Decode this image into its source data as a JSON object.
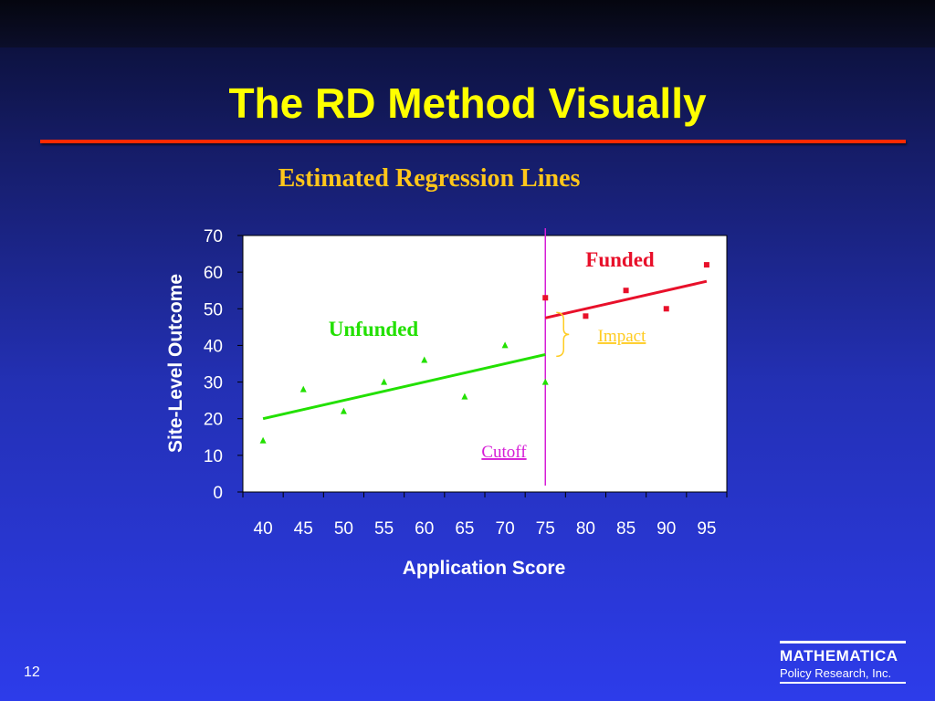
{
  "slide": {
    "title": "The RD Method Visually",
    "subtitle": "Estimated Regression Lines",
    "number": "12",
    "logo": {
      "main": "MATHEMATICA",
      "sub": "Policy Research, Inc."
    }
  },
  "colors": {
    "title": "#ffff00",
    "subtitle": "#ffc61a",
    "rule": "#ff2a00",
    "unfunded": "#22e000",
    "funded": "#e8102a",
    "cutoff": "#d61cd6",
    "impact": "#ffcc22",
    "plot_bg": "#ffffff"
  },
  "chart_data": {
    "type": "scatter",
    "xlabel": "Application Score",
    "ylabel": "Site-Level Outcome",
    "xlim": [
      37.5,
      97.5
    ],
    "ylim": [
      0,
      70
    ],
    "x_ticks": [
      40,
      45,
      50,
      55,
      60,
      65,
      70,
      75,
      80,
      85,
      90,
      95
    ],
    "y_ticks": [
      0,
      10,
      20,
      30,
      40,
      50,
      60,
      70
    ],
    "grid": false,
    "cutoff": 75,
    "series": [
      {
        "name": "Unfunded",
        "marker": "triangle",
        "points": [
          [
            40,
            14
          ],
          [
            45,
            28
          ],
          [
            50,
            22
          ],
          [
            55,
            30
          ],
          [
            60,
            36
          ],
          [
            65,
            26
          ],
          [
            70,
            40
          ],
          [
            75,
            30
          ]
        ],
        "fit": [
          [
            40,
            20
          ],
          [
            75,
            37.5
          ]
        ]
      },
      {
        "name": "Funded",
        "marker": "square",
        "points": [
          [
            75,
            53
          ],
          [
            80,
            48
          ],
          [
            85,
            55
          ],
          [
            90,
            50
          ],
          [
            95,
            62
          ]
        ],
        "fit": [
          [
            75,
            47.5
          ],
          [
            95,
            57.5
          ]
        ]
      }
    ],
    "annotations": [
      {
        "text": "Unfunded"
      },
      {
        "text": "Funded"
      },
      {
        "text": "Impact"
      },
      {
        "text": "Cutoff"
      }
    ]
  }
}
